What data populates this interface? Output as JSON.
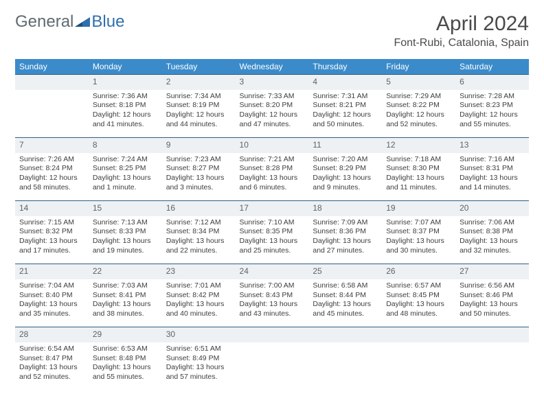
{
  "brand": {
    "general": "General",
    "blue": "Blue"
  },
  "header": {
    "title": "April 2024",
    "location": "Font-Rubi, Catalonia, Spain"
  },
  "weekdays": [
    "Sunday",
    "Monday",
    "Tuesday",
    "Wednesday",
    "Thursday",
    "Friday",
    "Saturday"
  ],
  "colors": {
    "header_bg": "#3b8bca",
    "header_text": "#ffffff",
    "daynum_bg": "#eef1f3",
    "daynum_text": "#5a646b",
    "daynum_border": "#2e5d86",
    "body_text": "#3d3d3d",
    "title_text": "#4a4a4a",
    "logo_gray": "#5e6a70",
    "logo_blue": "#2f6fad",
    "background": "#ffffff"
  },
  "typography": {
    "title_fontsize": 30,
    "location_fontsize": 16,
    "weekday_fontsize": 12,
    "daynum_fontsize": 12,
    "cell_fontsize": 10.5
  },
  "weeks": [
    {
      "nums": [
        "",
        "1",
        "2",
        "3",
        "4",
        "5",
        "6"
      ],
      "cells": [
        {
          "l1": "",
          "l2": "",
          "l3": "",
          "l4": ""
        },
        {
          "l1": "Sunrise: 7:36 AM",
          "l2": "Sunset: 8:18 PM",
          "l3": "Daylight: 12 hours",
          "l4": "and 41 minutes."
        },
        {
          "l1": "Sunrise: 7:34 AM",
          "l2": "Sunset: 8:19 PM",
          "l3": "Daylight: 12 hours",
          "l4": "and 44 minutes."
        },
        {
          "l1": "Sunrise: 7:33 AM",
          "l2": "Sunset: 8:20 PM",
          "l3": "Daylight: 12 hours",
          "l4": "and 47 minutes."
        },
        {
          "l1": "Sunrise: 7:31 AM",
          "l2": "Sunset: 8:21 PM",
          "l3": "Daylight: 12 hours",
          "l4": "and 50 minutes."
        },
        {
          "l1": "Sunrise: 7:29 AM",
          "l2": "Sunset: 8:22 PM",
          "l3": "Daylight: 12 hours",
          "l4": "and 52 minutes."
        },
        {
          "l1": "Sunrise: 7:28 AM",
          "l2": "Sunset: 8:23 PM",
          "l3": "Daylight: 12 hours",
          "l4": "and 55 minutes."
        }
      ]
    },
    {
      "nums": [
        "7",
        "8",
        "9",
        "10",
        "11",
        "12",
        "13"
      ],
      "cells": [
        {
          "l1": "Sunrise: 7:26 AM",
          "l2": "Sunset: 8:24 PM",
          "l3": "Daylight: 12 hours",
          "l4": "and 58 minutes."
        },
        {
          "l1": "Sunrise: 7:24 AM",
          "l2": "Sunset: 8:25 PM",
          "l3": "Daylight: 13 hours",
          "l4": "and 1 minute."
        },
        {
          "l1": "Sunrise: 7:23 AM",
          "l2": "Sunset: 8:27 PM",
          "l3": "Daylight: 13 hours",
          "l4": "and 3 minutes."
        },
        {
          "l1": "Sunrise: 7:21 AM",
          "l2": "Sunset: 8:28 PM",
          "l3": "Daylight: 13 hours",
          "l4": "and 6 minutes."
        },
        {
          "l1": "Sunrise: 7:20 AM",
          "l2": "Sunset: 8:29 PM",
          "l3": "Daylight: 13 hours",
          "l4": "and 9 minutes."
        },
        {
          "l1": "Sunrise: 7:18 AM",
          "l2": "Sunset: 8:30 PM",
          "l3": "Daylight: 13 hours",
          "l4": "and 11 minutes."
        },
        {
          "l1": "Sunrise: 7:16 AM",
          "l2": "Sunset: 8:31 PM",
          "l3": "Daylight: 13 hours",
          "l4": "and 14 minutes."
        }
      ]
    },
    {
      "nums": [
        "14",
        "15",
        "16",
        "17",
        "18",
        "19",
        "20"
      ],
      "cells": [
        {
          "l1": "Sunrise: 7:15 AM",
          "l2": "Sunset: 8:32 PM",
          "l3": "Daylight: 13 hours",
          "l4": "and 17 minutes."
        },
        {
          "l1": "Sunrise: 7:13 AM",
          "l2": "Sunset: 8:33 PM",
          "l3": "Daylight: 13 hours",
          "l4": "and 19 minutes."
        },
        {
          "l1": "Sunrise: 7:12 AM",
          "l2": "Sunset: 8:34 PM",
          "l3": "Daylight: 13 hours",
          "l4": "and 22 minutes."
        },
        {
          "l1": "Sunrise: 7:10 AM",
          "l2": "Sunset: 8:35 PM",
          "l3": "Daylight: 13 hours",
          "l4": "and 25 minutes."
        },
        {
          "l1": "Sunrise: 7:09 AM",
          "l2": "Sunset: 8:36 PM",
          "l3": "Daylight: 13 hours",
          "l4": "and 27 minutes."
        },
        {
          "l1": "Sunrise: 7:07 AM",
          "l2": "Sunset: 8:37 PM",
          "l3": "Daylight: 13 hours",
          "l4": "and 30 minutes."
        },
        {
          "l1": "Sunrise: 7:06 AM",
          "l2": "Sunset: 8:38 PM",
          "l3": "Daylight: 13 hours",
          "l4": "and 32 minutes."
        }
      ]
    },
    {
      "nums": [
        "21",
        "22",
        "23",
        "24",
        "25",
        "26",
        "27"
      ],
      "cells": [
        {
          "l1": "Sunrise: 7:04 AM",
          "l2": "Sunset: 8:40 PM",
          "l3": "Daylight: 13 hours",
          "l4": "and 35 minutes."
        },
        {
          "l1": "Sunrise: 7:03 AM",
          "l2": "Sunset: 8:41 PM",
          "l3": "Daylight: 13 hours",
          "l4": "and 38 minutes."
        },
        {
          "l1": "Sunrise: 7:01 AM",
          "l2": "Sunset: 8:42 PM",
          "l3": "Daylight: 13 hours",
          "l4": "and 40 minutes."
        },
        {
          "l1": "Sunrise: 7:00 AM",
          "l2": "Sunset: 8:43 PM",
          "l3": "Daylight: 13 hours",
          "l4": "and 43 minutes."
        },
        {
          "l1": "Sunrise: 6:58 AM",
          "l2": "Sunset: 8:44 PM",
          "l3": "Daylight: 13 hours",
          "l4": "and 45 minutes."
        },
        {
          "l1": "Sunrise: 6:57 AM",
          "l2": "Sunset: 8:45 PM",
          "l3": "Daylight: 13 hours",
          "l4": "and 48 minutes."
        },
        {
          "l1": "Sunrise: 6:56 AM",
          "l2": "Sunset: 8:46 PM",
          "l3": "Daylight: 13 hours",
          "l4": "and 50 minutes."
        }
      ]
    },
    {
      "nums": [
        "28",
        "29",
        "30",
        "",
        "",
        "",
        ""
      ],
      "cells": [
        {
          "l1": "Sunrise: 6:54 AM",
          "l2": "Sunset: 8:47 PM",
          "l3": "Daylight: 13 hours",
          "l4": "and 52 minutes."
        },
        {
          "l1": "Sunrise: 6:53 AM",
          "l2": "Sunset: 8:48 PM",
          "l3": "Daylight: 13 hours",
          "l4": "and 55 minutes."
        },
        {
          "l1": "Sunrise: 6:51 AM",
          "l2": "Sunset: 8:49 PM",
          "l3": "Daylight: 13 hours",
          "l4": "and 57 minutes."
        },
        {
          "l1": "",
          "l2": "",
          "l3": "",
          "l4": ""
        },
        {
          "l1": "",
          "l2": "",
          "l3": "",
          "l4": ""
        },
        {
          "l1": "",
          "l2": "",
          "l3": "",
          "l4": ""
        },
        {
          "l1": "",
          "l2": "",
          "l3": "",
          "l4": ""
        }
      ]
    }
  ]
}
